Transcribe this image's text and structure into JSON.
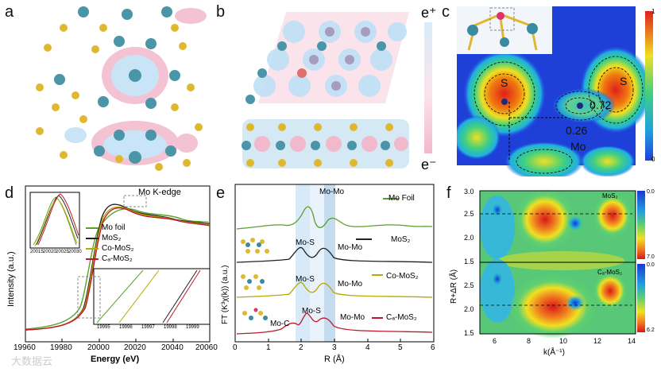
{
  "panels": {
    "a": {
      "label": "a"
    },
    "b": {
      "label": "b",
      "scale_top": "e⁺",
      "scale_bottom": "e⁻",
      "colors": {
        "pos": "#f2b8cc",
        "neg": "#bfe0f5"
      }
    },
    "c": {
      "label": "c",
      "atoms": [
        "S",
        "S",
        "Mo"
      ],
      "values": [
        "0.72",
        "0.26"
      ],
      "colorbar": [
        "1",
        "0"
      ]
    },
    "d": {
      "label": "d",
      "title": "Mo K-edge",
      "xlabel": "Energy (eV)",
      "ylabel": "Intensity (a.u.)",
      "xticks": [
        "19960",
        "19980",
        "20000",
        "20020",
        "20040",
        "20060"
      ],
      "inset_left_ticks": [
        "20015",
        "20020",
        "20025",
        "20030"
      ],
      "inset_right_ticks": [
        "19995",
        "19996",
        "19997",
        "19998",
        "19999"
      ],
      "legend": [
        "Mo foil",
        "MoS₂",
        "Co-MoS₂",
        "Cₐ-MoS₂"
      ],
      "colors": [
        "#5aa02c",
        "#222222",
        "#b8a800",
        "#c0182a"
      ]
    },
    "e": {
      "label": "e",
      "xlabel": "R (Å)",
      "ylabel": "FT (K³χ(k)) (a.u.)",
      "xticks": [
        "0",
        "1",
        "2",
        "3",
        "4",
        "5",
        "6"
      ],
      "series_labels": [
        "Mo Foil",
        "MoS₂",
        "Co-MoS₂",
        "Cₐ-MoS₂"
      ],
      "peak_labels": [
        "Mo-Mo",
        "Mo-S",
        "Mo-Mo",
        "Mo-S",
        "Mo-Mo",
        "Mo-S",
        "Mo-Mo",
        "Mo-C"
      ],
      "colors": [
        "#5aa02c",
        "#222222",
        "#b8a800",
        "#c0182a"
      ]
    },
    "f": {
      "label": "f",
      "xlabel": "k(Å⁻¹)",
      "ylabel": "R+ΔR (Å)",
      "xticks": [
        "6",
        "8",
        "10",
        "12",
        "14"
      ],
      "yticks_top": [
        "3.0",
        "2.5",
        "2.0",
        "1.5"
      ],
      "yticks_bottom": [
        "2.5",
        "2.0",
        "1.5"
      ],
      "top_title": "MoS₂",
      "bottom_title": "Cₐ-MoS₂",
      "cb_top": [
        "0.0",
        "7.0"
      ],
      "cb_bottom": [
        "0.0",
        "6.2"
      ]
    }
  },
  "watermark": "大数据云"
}
